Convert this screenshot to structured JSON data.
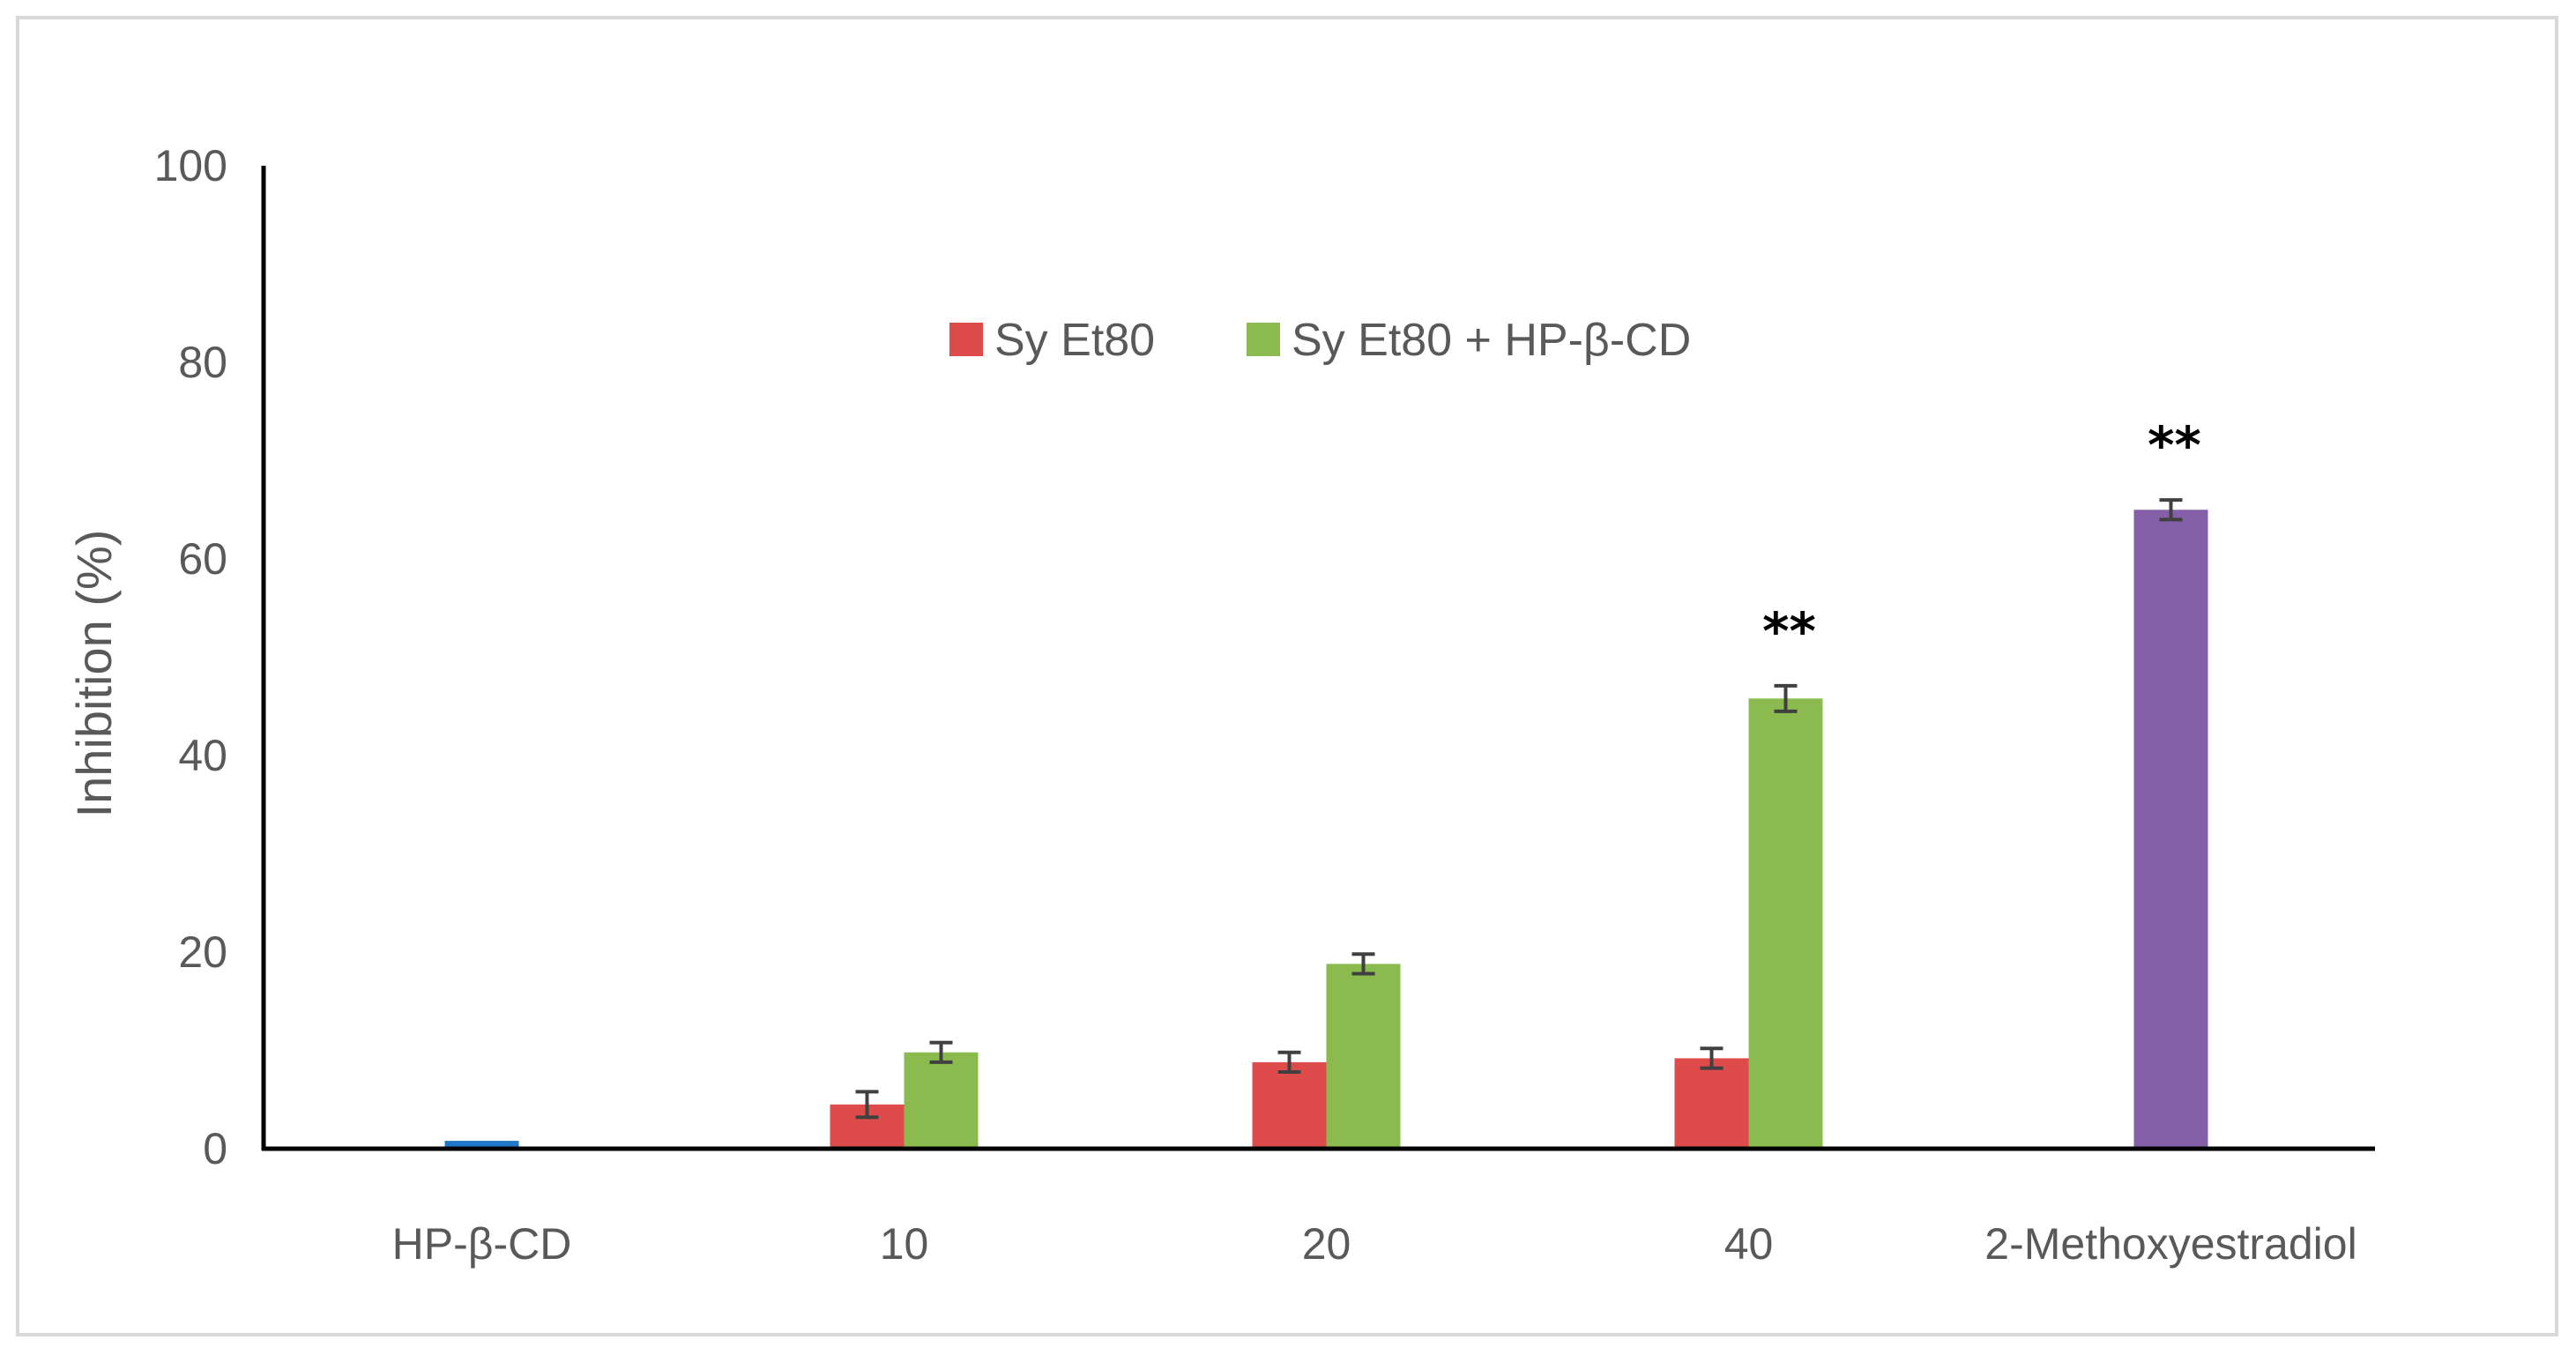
{
  "chart_data": {
    "type": "bar",
    "ylabel": "Inhibition (%)",
    "ylim": [
      0,
      100
    ],
    "yticks": [
      "0",
      "20",
      "40",
      "60",
      "80",
      "100"
    ],
    "grid": false,
    "legend_position": "top-center",
    "categories": [
      "HP-β-CD",
      "10",
      "20",
      "40",
      "2-Methoxyestradiol"
    ],
    "series": [
      {
        "key": "control",
        "color": "#1F78C8",
        "values": [
          0.8,
          null,
          null,
          null,
          null
        ],
        "errors": [
          null,
          null,
          null,
          null,
          null
        ]
      },
      {
        "key": "syet80",
        "name": "Sy Et80",
        "color": "#DE4B4B",
        "values": [
          null,
          4.5,
          8.8,
          9.2,
          null
        ],
        "errors": [
          null,
          1.3,
          1.0,
          1.0,
          null
        ]
      },
      {
        "key": "syet80_hp",
        "name": "Sy Et80 + HP-β-CD",
        "color": "#8BBB4E",
        "values": [
          null,
          9.8,
          18.8,
          45.8,
          null
        ],
        "errors": [
          null,
          1.0,
          1.0,
          1.3,
          null
        ]
      },
      {
        "key": "methoxy",
        "color": "#8560A8",
        "values": [
          null,
          null,
          null,
          null,
          65.0
        ],
        "errors": [
          null,
          null,
          null,
          null,
          1.0
        ]
      }
    ],
    "annotations": [
      {
        "category": "40",
        "series": "syet80_hp",
        "text": "**"
      },
      {
        "category": "2-Methoxyestradiol",
        "series": "methoxy",
        "text": "**"
      }
    ]
  }
}
